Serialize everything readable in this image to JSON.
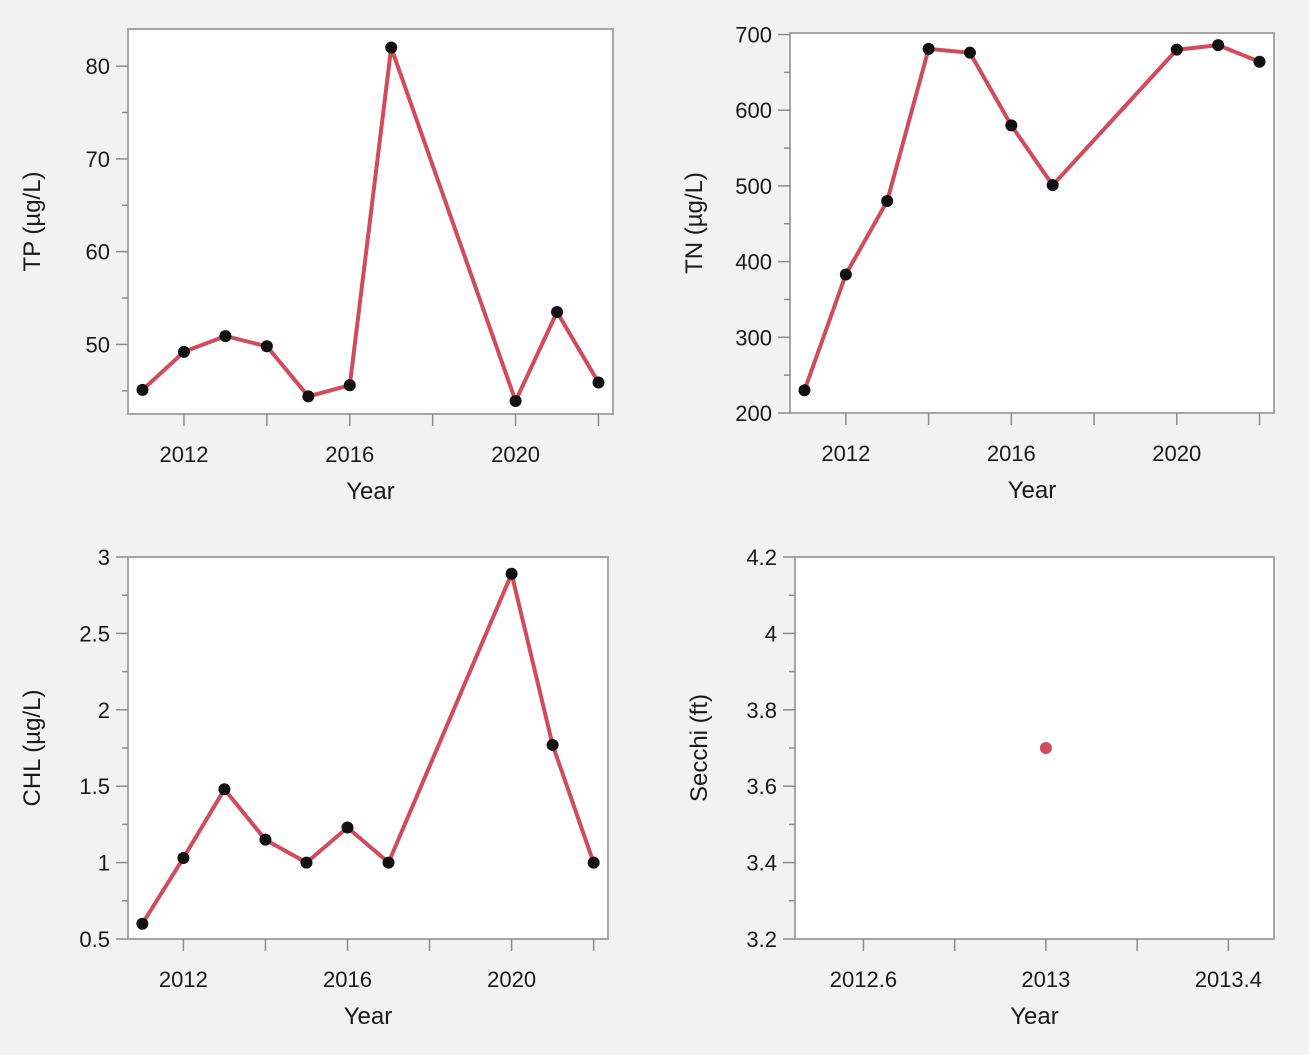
{
  "colors": {
    "line": "#d04b5b",
    "marker": "#111111",
    "single_marker": "#d04b5b"
  },
  "chart_data": [
    {
      "type": "line",
      "xlabel": "Year",
      "ylabel": "TP (µg/L)",
      "xlim": [
        2010.65,
        2022.35
      ],
      "ylim": [
        42.5,
        84
      ],
      "x_ticks": [
        2012,
        2016,
        2020
      ],
      "x_minor_ticks": [
        2014,
        2018,
        2022
      ],
      "y_ticks": [
        50,
        60,
        70,
        80
      ],
      "y_minor_ticks": [
        45,
        55,
        65,
        75
      ],
      "x": [
        2011,
        2012,
        2013,
        2014,
        2015,
        2016,
        2017,
        2020,
        2021,
        2022
      ],
      "y": [
        45.1,
        49.2,
        50.9,
        49.8,
        44.4,
        45.6,
        82.0,
        43.9,
        53.5,
        45.9
      ],
      "markers": true
    },
    {
      "type": "line",
      "xlabel": "Year",
      "ylabel": "TN (µg/L)",
      "xlim": [
        2010.65,
        2022.35
      ],
      "ylim": [
        200,
        702
      ],
      "x_ticks": [
        2012,
        2016,
        2020
      ],
      "x_minor_ticks": [
        2014,
        2018,
        2022
      ],
      "y_ticks": [
        200,
        300,
        400,
        500,
        600,
        700
      ],
      "y_minor_ticks": [
        250,
        350,
        450,
        550,
        650
      ],
      "x": [
        2011,
        2012,
        2013,
        2014,
        2015,
        2016,
        2017,
        2020,
        2021,
        2022
      ],
      "y": [
        230,
        383,
        480,
        681,
        676,
        580,
        501,
        680,
        686,
        664
      ],
      "markers": true
    },
    {
      "type": "line",
      "xlabel": "Year",
      "ylabel": "CHL (µg/L)",
      "xlim": [
        2010.65,
        2022.35
      ],
      "ylim": [
        0.5,
        3.0
      ],
      "x_ticks": [
        2012,
        2016,
        2020
      ],
      "x_minor_ticks": [
        2014,
        2018,
        2022
      ],
      "y_ticks": [
        0.5,
        1,
        1.5,
        2,
        2.5,
        3
      ],
      "y_tick_labels": [
        "0.5",
        "1",
        "1.5",
        "2",
        "2.5",
        "3"
      ],
      "y_minor_ticks": [
        0.75,
        1.25,
        1.75,
        2.25,
        2.75
      ],
      "x": [
        2011,
        2012,
        2013,
        2014,
        2015,
        2016,
        2017,
        2020,
        2021,
        2022
      ],
      "y": [
        0.6,
        1.03,
        1.48,
        1.15,
        1.0,
        1.23,
        1.0,
        2.89,
        1.77,
        1.0
      ],
      "markers": true
    },
    {
      "type": "scatter",
      "xlabel": "Year",
      "ylabel": "Secchi (ft)",
      "xlim": [
        2012.45,
        2013.5
      ],
      "ylim": [
        3.2,
        4.2
      ],
      "x_ticks": [
        2012.6,
        2013,
        2013.4
      ],
      "x_tick_labels": [
        "2012.6",
        "2013",
        "2013.4"
      ],
      "x_minor_ticks": [
        2012.8,
        2013.2
      ],
      "y_ticks": [
        3.2,
        3.4,
        3.6,
        3.8,
        4.0,
        4.2
      ],
      "y_tick_labels": [
        "3.2",
        "3.4",
        "3.6",
        "3.8",
        "4",
        "4.2"
      ],
      "y_minor_ticks": [
        3.3,
        3.5,
        3.7,
        3.9,
        4.1
      ],
      "x": [
        2013
      ],
      "y": [
        3.7
      ],
      "markers": true
    }
  ]
}
